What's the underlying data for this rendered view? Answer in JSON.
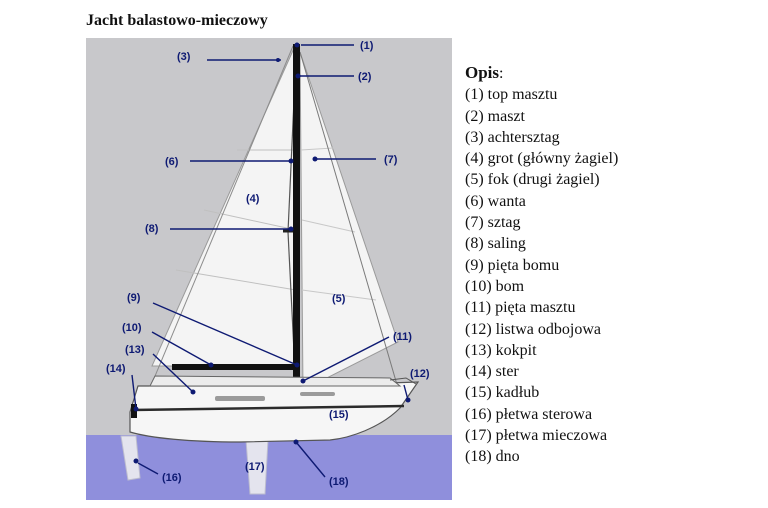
{
  "title": "Jacht balastowo-mieczowy",
  "legend": {
    "heading": "Opis",
    "items": [
      "(1) top masztu",
      "(2) maszt",
      "(3) achtersztag",
      "(4) grot (główny żagiel)",
      "(5) fok (drugi żagiel)",
      "(6) wanta",
      "(7) sztag",
      "(8) saling",
      "(9) pięta bomu",
      "(10) bom",
      "(11) pięta masztu",
      "(12) listwa odbojowa",
      "(13) kokpit",
      "(14) ster",
      "(15) kadłub",
      "(16) płetwa sterowa",
      "(17) płetwa mieczowa",
      "(18) dno"
    ]
  },
  "callouts": [
    "(1)",
    "(2)",
    "(3)",
    "(4)",
    "(5)",
    "(6)",
    "(7)",
    "(8)",
    "(9)",
    "(10)",
    "(11)",
    "(12)",
    "(13)",
    "(14)",
    "(15)",
    "(16)",
    "(17)",
    "(18)"
  ],
  "colors": {
    "sky": "#c8c8cb",
    "water": "#8f8fdc",
    "callout": "#0e1a73",
    "sail": "#f4f4f4",
    "hull": "#f6f6f6"
  }
}
